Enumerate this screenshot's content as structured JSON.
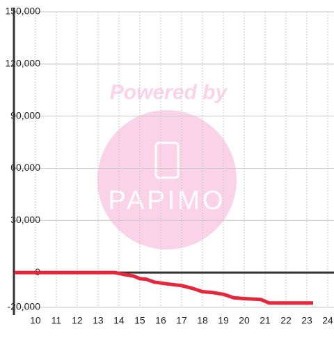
{
  "chart_data": {
    "type": "line",
    "watermark": {
      "title": "Powered by",
      "brand": "PAPIMO"
    },
    "x": [
      9,
      13.8,
      14.2,
      14.7,
      15,
      15.3,
      15.7,
      16.3,
      17,
      17.5,
      18,
      18.5,
      19,
      19.5,
      20,
      20.8,
      21.2,
      23.3
    ],
    "series": [
      {
        "color": "#e8253a",
        "values": [
          0,
          0,
          -1000,
          -2000,
          -3500,
          -3800,
          -5500,
          -6500,
          -7500,
          -9000,
          -11000,
          -11500,
          -12500,
          -14500,
          -15000,
          -15500,
          -17500,
          -17500
        ]
      }
    ],
    "xlim": [
      8.97,
      24.3
    ],
    "xticks": [
      10,
      11,
      12,
      13,
      14,
      15,
      16,
      17,
      18,
      19,
      20,
      21,
      22,
      23,
      24
    ],
    "ylim": [
      -20000,
      150000
    ],
    "yticks": [
      {
        "value": -20000,
        "label": "-20,000"
      },
      0,
      {
        "value": 30000,
        "label": "30,000"
      },
      {
        "value": 60000,
        "label": "60,000"
      },
      {
        "value": 90000,
        "label": "90,000"
      },
      {
        "value": 120000,
        "label": "120,000"
      },
      {
        "value": 150000,
        "label": "150,000"
      }
    ],
    "grid": true
  }
}
